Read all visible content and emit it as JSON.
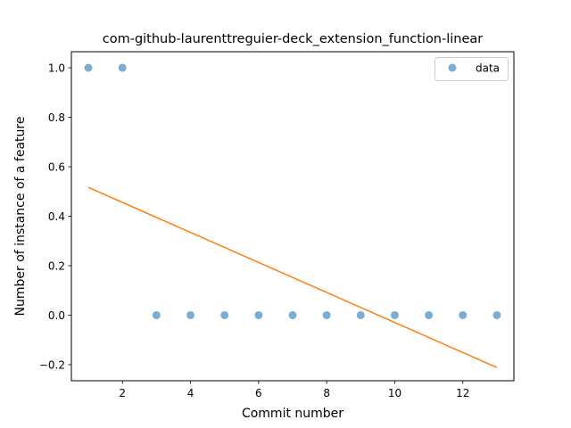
{
  "chart_data": {
    "type": "scatter",
    "title": "com-github-laurenttreguier-deck_extension_function-linear",
    "xlabel": "Commit number",
    "ylabel": "Number of instance of a feature",
    "xlim": [
      0.5,
      13.5
    ],
    "ylim": [
      -0.265,
      1.065
    ],
    "xticks": [
      2,
      4,
      6,
      8,
      10,
      12
    ],
    "yticks": [
      -0.2,
      0.0,
      0.2,
      0.4,
      0.6,
      0.8,
      1.0
    ],
    "ytick_labels": [
      "−0.2",
      "0.0",
      "0.2",
      "0.4",
      "0.6",
      "0.8",
      "1.0"
    ],
    "grid": false,
    "legend_position": "top-right",
    "series": [
      {
        "name": "data",
        "type": "scatter",
        "color": "#1f77b4",
        "x": [
          1,
          2,
          3,
          4,
          5,
          6,
          7,
          8,
          9,
          10,
          11,
          12,
          13
        ],
        "y": [
          1,
          1,
          0,
          0,
          0,
          0,
          0,
          0,
          0,
          0,
          0,
          0,
          0
        ]
      },
      {
        "type": "line",
        "color": "#ff7f0e",
        "x": [
          1,
          13
        ],
        "y": [
          0.5165,
          -0.2115
        ]
      }
    ]
  }
}
